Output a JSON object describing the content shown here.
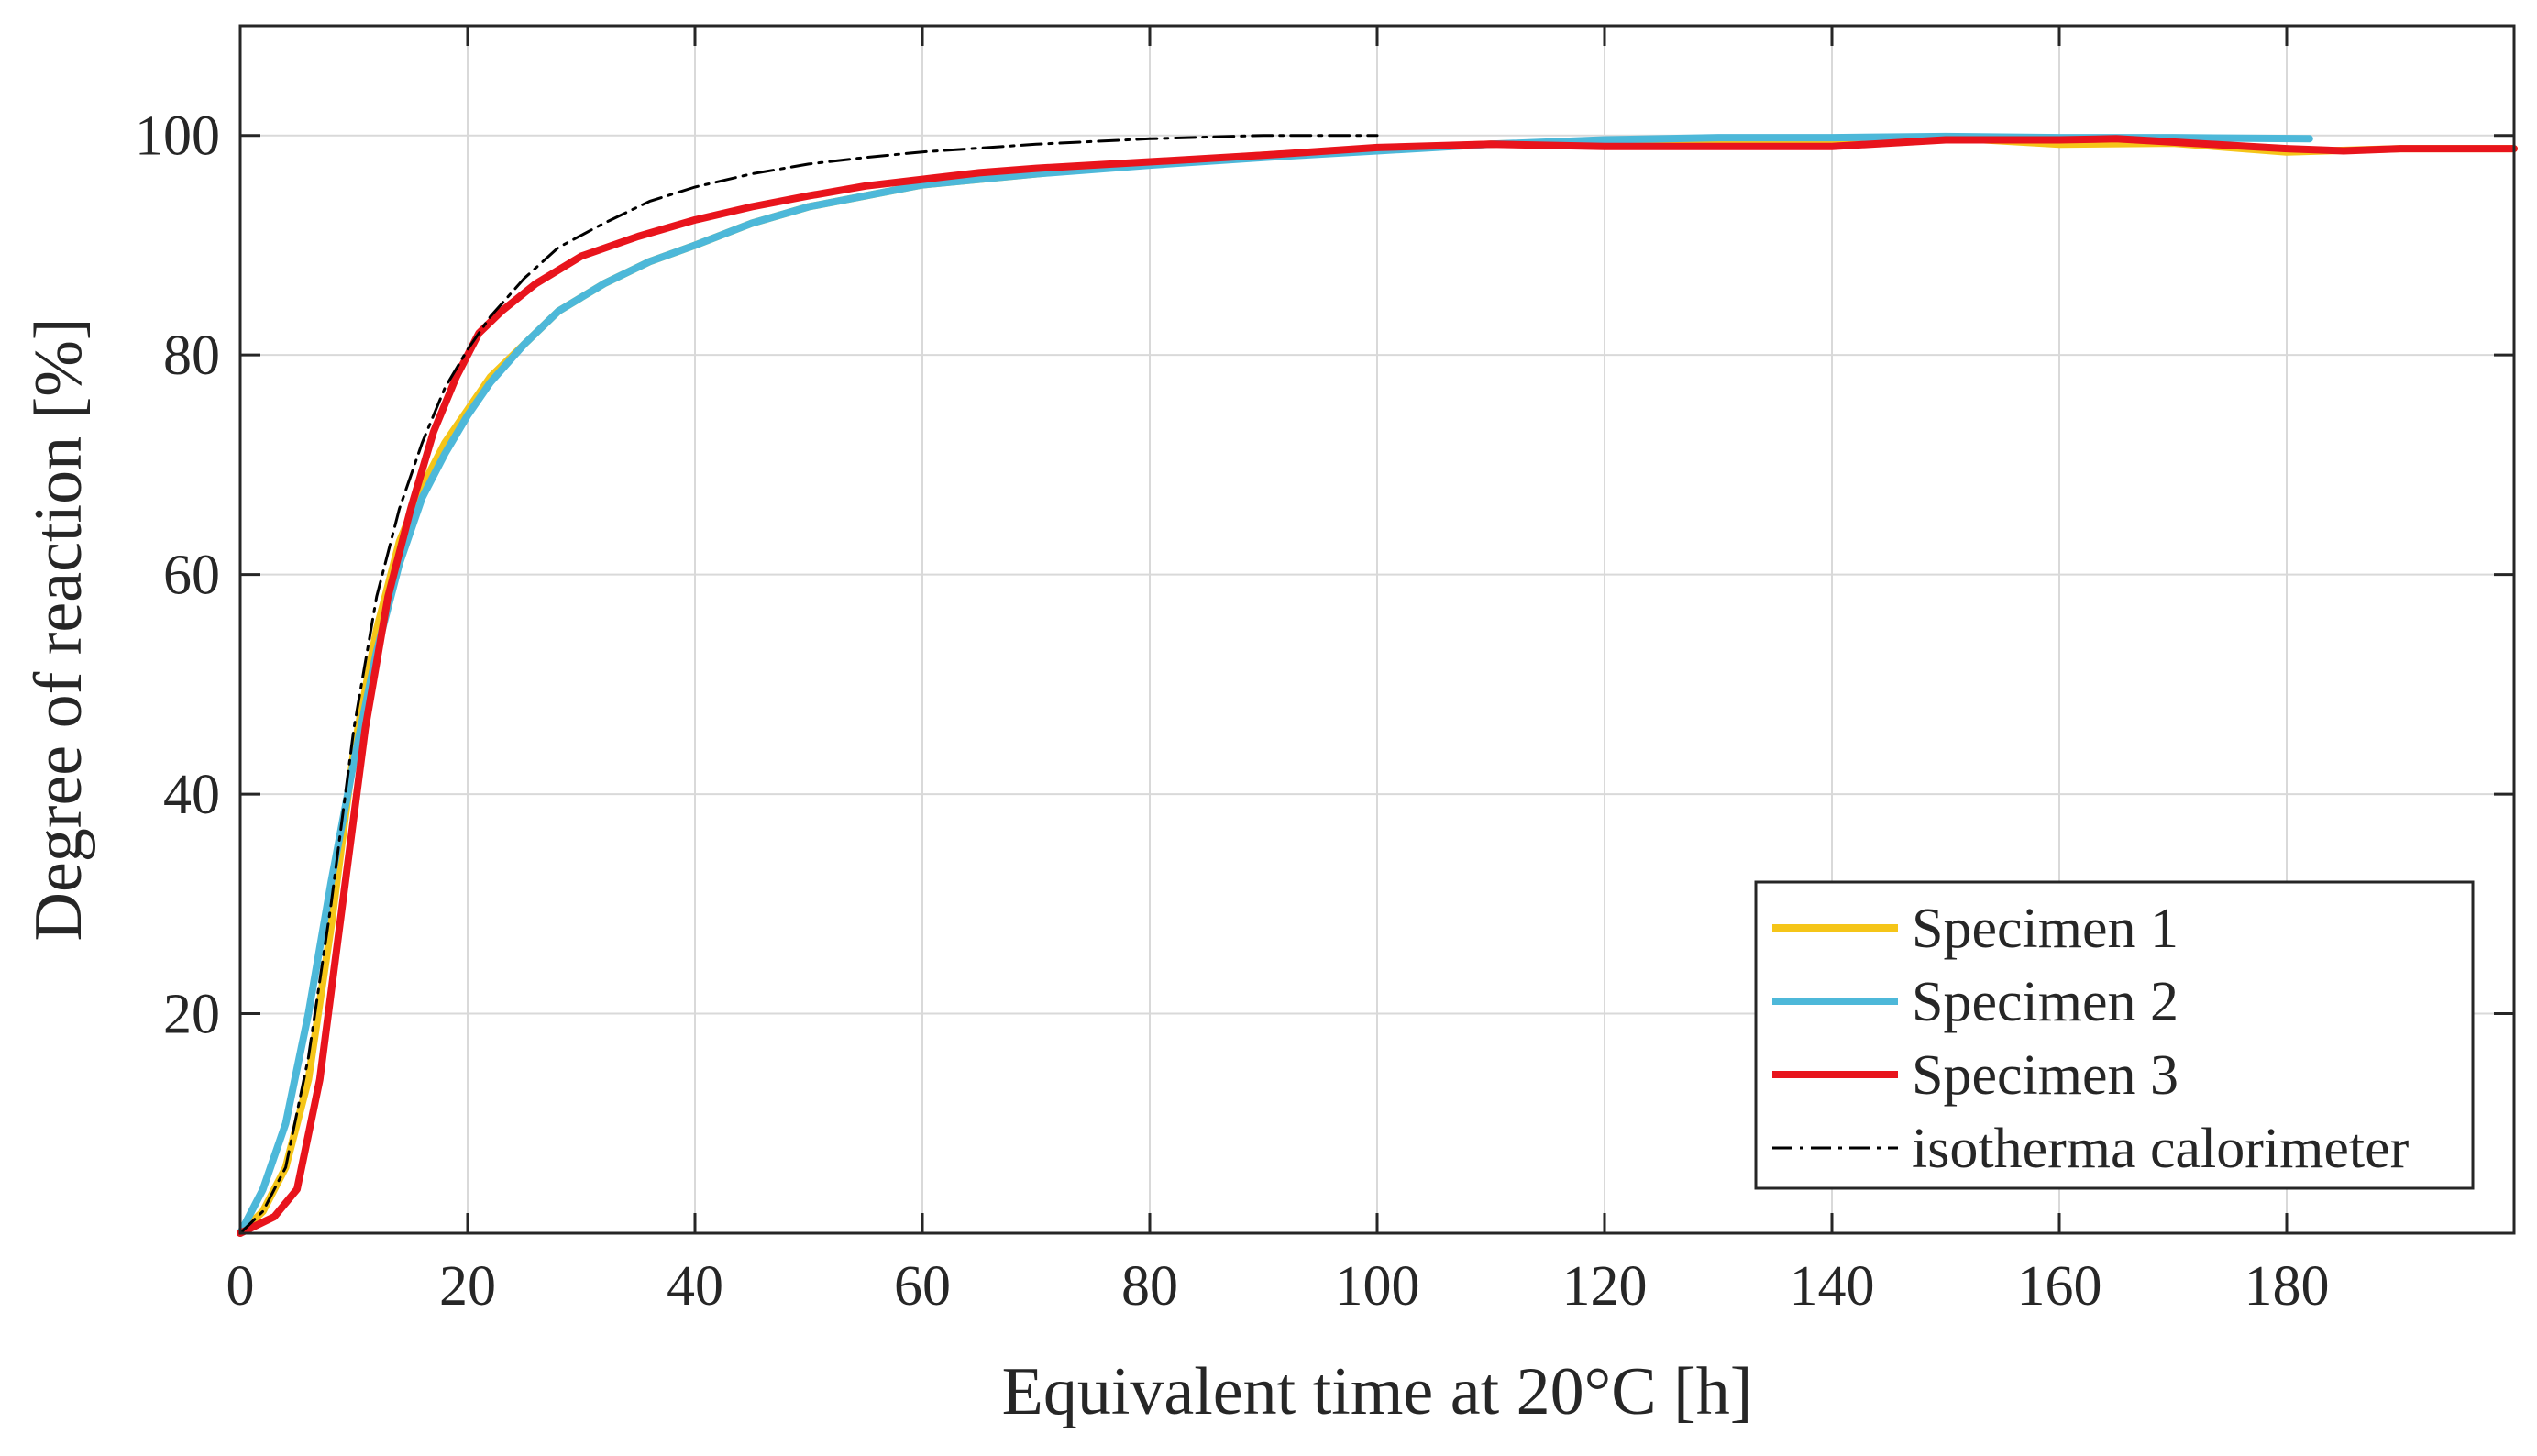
{
  "chart_data": {
    "type": "line",
    "title": "",
    "xlabel": "Equivalent time at 20°C [h]",
    "ylabel": "Degree of reaction [%]",
    "xlim": [
      0,
      200
    ],
    "ylim": [
      0,
      110
    ],
    "xticks": [
      0,
      20,
      40,
      60,
      80,
      100,
      120,
      140,
      160,
      180
    ],
    "yticks": [
      20,
      40,
      60,
      80,
      100
    ],
    "grid": true,
    "legend_position": "bottom-right",
    "series": [
      {
        "name": "Specimen 1",
        "color": "#f5c518",
        "style": "solid",
        "x": [
          0,
          2,
          4,
          6,
          8,
          10,
          12,
          14,
          16,
          18,
          20,
          22,
          25,
          28,
          32,
          36,
          40,
          45,
          50,
          55,
          60,
          70,
          80,
          90,
          100,
          110,
          120,
          130,
          140,
          150,
          160,
          170,
          180,
          190,
          200
        ],
        "y": [
          0,
          2,
          6,
          14,
          28,
          44,
          55,
          63,
          68,
          72,
          75,
          78,
          81,
          84,
          86.5,
          88.5,
          90,
          92,
          93.5,
          94.5,
          95.5,
          96.5,
          97.5,
          98.2,
          98.8,
          99.2,
          99.5,
          99.5,
          99.5,
          99.8,
          99.2,
          99.3,
          98.5,
          98.8,
          98.8
        ]
      },
      {
        "name": "Specimen 2",
        "color": "#4db8d9",
        "style": "solid",
        "x": [
          0,
          2,
          4,
          6,
          8,
          10,
          12,
          14,
          16,
          18,
          20,
          22,
          25,
          28,
          32,
          36,
          40,
          45,
          50,
          55,
          60,
          70,
          80,
          90,
          100,
          110,
          120,
          130,
          140,
          150,
          160,
          170,
          182
        ],
        "y": [
          0,
          4,
          10,
          20,
          32,
          43,
          53,
          61,
          67,
          71,
          74.5,
          77.5,
          81,
          84,
          86.5,
          88.5,
          90,
          92,
          93.5,
          94.5,
          95.5,
          96.5,
          97.3,
          98,
          98.6,
          99.2,
          99.6,
          99.8,
          99.8,
          99.9,
          99.8,
          99.8,
          99.7
        ]
      },
      {
        "name": "Specimen 3",
        "color": "#e8141c",
        "style": "solid",
        "x": [
          0,
          3,
          5,
          7,
          9,
          11,
          13,
          15,
          17,
          19,
          21,
          23,
          26,
          30,
          35,
          40,
          45,
          50,
          55,
          60,
          65,
          70,
          80,
          90,
          100,
          110,
          120,
          130,
          140,
          150,
          160,
          165,
          170,
          180,
          185,
          190,
          200
        ],
        "y": [
          0,
          1.5,
          4,
          14,
          30,
          46,
          58,
          66,
          73,
          78,
          82,
          84,
          86.5,
          89,
          90.8,
          92.3,
          93.5,
          94.5,
          95.4,
          96,
          96.6,
          97,
          97.6,
          98.2,
          98.9,
          99.2,
          99,
          99,
          99,
          99.6,
          99.6,
          99.7,
          99.4,
          98.8,
          98.6,
          98.8,
          98.8
        ]
      },
      {
        "name": "isotherma calorimeter",
        "color": "#000000",
        "style": "dashdot",
        "x": [
          0,
          2,
          4,
          6,
          8,
          10,
          12,
          14,
          16,
          18,
          20,
          22,
          25,
          28,
          32,
          36,
          40,
          45,
          50,
          55,
          60,
          70,
          80,
          90,
          100
        ],
        "y": [
          0,
          2,
          6,
          16,
          30,
          46,
          58,
          66,
          72,
          77,
          80.5,
          83.5,
          87,
          89.8,
          92,
          94,
          95.3,
          96.5,
          97.4,
          98,
          98.5,
          99.2,
          99.7,
          100,
          100
        ]
      }
    ]
  }
}
